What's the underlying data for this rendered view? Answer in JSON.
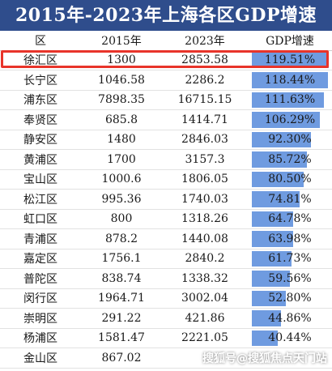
{
  "title": "2015年-2023年上海各区GDP增速",
  "chart_data": {
    "type": "table",
    "headers": [
      "区",
      "2015年",
      "2023年",
      "GDP增速"
    ],
    "rows": [
      {
        "district": "徐汇区",
        "y2015": "1300",
        "y2023": "2853.58",
        "growth": "119.51%",
        "growth_value": 119.51
      },
      {
        "district": "长宁区",
        "y2015": "1046.58",
        "y2023": "2286.2",
        "growth": "118.44%",
        "growth_value": 118.44
      },
      {
        "district": "浦东区",
        "y2015": "7898.35",
        "y2023": "16715.15",
        "growth": "111.63%",
        "growth_value": 111.63
      },
      {
        "district": "奉贤区",
        "y2015": "685.8",
        "y2023": "1414.71",
        "growth": "106.29%",
        "growth_value": 106.29
      },
      {
        "district": "静安区",
        "y2015": "1480",
        "y2023": "2846.03",
        "growth": "92.30%",
        "growth_value": 92.3
      },
      {
        "district": "黄浦区",
        "y2015": "1700",
        "y2023": "3157.3",
        "growth": "85.72%",
        "growth_value": 85.72
      },
      {
        "district": "宝山区",
        "y2015": "1000.6",
        "y2023": "1806.05",
        "growth": "80.50%",
        "growth_value": 80.5
      },
      {
        "district": "松江区",
        "y2015": "995.36",
        "y2023": "1740.03",
        "growth": "74.81%",
        "growth_value": 74.81
      },
      {
        "district": "虹口区",
        "y2015": "800",
        "y2023": "1318.26",
        "growth": "64.78%",
        "growth_value": 64.78
      },
      {
        "district": "青浦区",
        "y2015": "878.2",
        "y2023": "1440.08",
        "growth": "63.98%",
        "growth_value": 63.98
      },
      {
        "district": "嘉定区",
        "y2015": "1756.1",
        "y2023": "2840.2",
        "growth": "61.73%",
        "growth_value": 61.73
      },
      {
        "district": "普陀区",
        "y2015": "838.74",
        "y2023": "1338.32",
        "growth": "59.56%",
        "growth_value": 59.56
      },
      {
        "district": "闵行区",
        "y2015": "1964.71",
        "y2023": "3002.04",
        "growth": "52.80%",
        "growth_value": 52.8
      },
      {
        "district": "崇明区",
        "y2015": "291.22",
        "y2023": "421.86",
        "growth": "44.86%",
        "growth_value": 44.86
      },
      {
        "district": "杨浦区",
        "y2015": "1581.47",
        "y2023": "2221.05",
        "growth": "40.44%",
        "growth_value": 40.44
      },
      {
        "district": "金山区",
        "y2015": "867.02",
        "y2023": "",
        "growth": "",
        "growth_value": null
      }
    ],
    "growth_max": 119.51,
    "highlighted_row": "徐汇区",
    "colors": {
      "header": "#2f4d8c",
      "bar": "#6f9be0",
      "highlight": "#e8342a"
    }
  },
  "watermark": "搜狐号@搜狐焦点天门站"
}
